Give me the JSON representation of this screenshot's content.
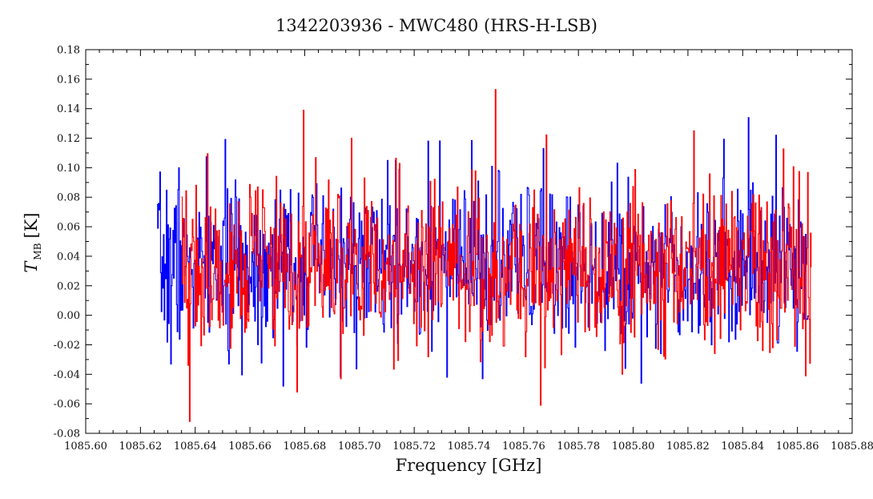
{
  "chart_data": {
    "type": "line",
    "title": "1342203936 - MWC480 (HRS-H-LSB)",
    "xlabel": "Frequency [GHz]",
    "ylabel_main": "T",
    "ylabel_sub": "MB",
    "ylabel_unit": "[K]",
    "xlim": [
      1085.6,
      1085.88
    ],
    "ylim": [
      -0.08,
      0.18
    ],
    "x_ticks": [
      "1085.60",
      "1085.62",
      "1085.64",
      "1085.66",
      "1085.68",
      "1085.70",
      "1085.72",
      "1085.74",
      "1085.76",
      "1085.78",
      "1085.80",
      "1085.82",
      "1085.84",
      "1085.86",
      "1085.88"
    ],
    "x_tick_values": [
      1085.6,
      1085.62,
      1085.64,
      1085.66,
      1085.68,
      1085.7,
      1085.72,
      1085.74,
      1085.76,
      1085.78,
      1085.8,
      1085.82,
      1085.84,
      1085.86,
      1085.88
    ],
    "y_ticks": [
      "-0.08",
      "-0.06",
      "-0.04",
      "-0.02",
      "0.00",
      "0.02",
      "0.04",
      "0.06",
      "0.08",
      "0.10",
      "0.12",
      "0.14",
      "0.16",
      "0.18"
    ],
    "y_tick_values": [
      -0.08,
      -0.06,
      -0.04,
      -0.02,
      0.0,
      0.02,
      0.04,
      0.06,
      0.08,
      0.1,
      0.12,
      0.14,
      0.16,
      0.18
    ],
    "grid": false,
    "series": [
      {
        "color": "#0000ff",
        "x_start": 1085.626,
        "x_end": 1085.864,
        "points": 900,
        "noise_center": 0.035,
        "noise_sigma": 0.027,
        "seed": 7,
        "features": [
          {
            "x": 1085.626,
            "y": 0.075
          },
          {
            "x": 1085.631,
            "y": -0.033
          },
          {
            "x": 1085.634,
            "y": 0.1
          },
          {
            "x": 1085.652,
            "y": -0.024
          },
          {
            "x": 1085.672,
            "y": -0.048
          },
          {
            "x": 1085.713,
            "y": 0.105
          },
          {
            "x": 1085.725,
            "y": 0.118
          },
          {
            "x": 1085.732,
            "y": -0.042
          },
          {
            "x": 1085.745,
            "y": -0.043
          },
          {
            "x": 1085.767,
            "y": 0.113
          },
          {
            "x": 1085.797,
            "y": -0.036
          },
          {
            "x": 1085.842,
            "y": 0.134
          },
          {
            "x": 1085.852,
            "y": 0.122
          }
        ]
      },
      {
        "color": "#ff0000",
        "x_start": 1085.635,
        "x_end": 1085.865,
        "points": 880,
        "noise_center": 0.033,
        "noise_sigma": 0.028,
        "seed": 19,
        "features": [
          {
            "x": 1085.638,
            "y": -0.072
          },
          {
            "x": 1085.6795,
            "y": 0.139
          },
          {
            "x": 1085.677,
            "y": -0.052
          },
          {
            "x": 1085.693,
            "y": -0.043
          },
          {
            "x": 1085.697,
            "y": 0.12
          },
          {
            "x": 1085.7495,
            "y": 0.153
          },
          {
            "x": 1085.766,
            "y": -0.061
          },
          {
            "x": 1085.822,
            "y": 0.125
          },
          {
            "x": 1085.851,
            "y": -0.022
          },
          {
            "x": 1085.863,
            "y": -0.041
          }
        ]
      }
    ]
  }
}
